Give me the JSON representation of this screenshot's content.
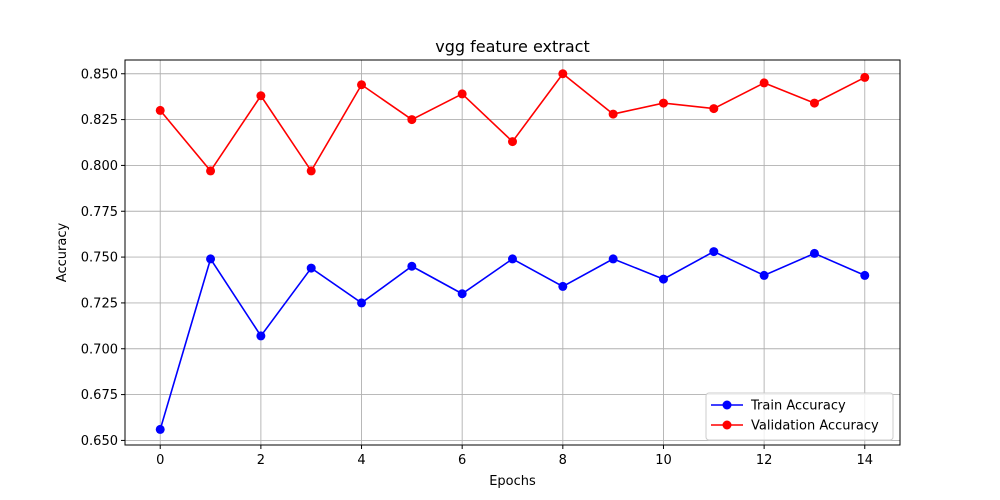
{
  "chart_data": {
    "type": "line",
    "title": "vgg feature extract",
    "xlabel": "Epochs",
    "ylabel": "Accuracy",
    "x": [
      0,
      1,
      2,
      3,
      4,
      5,
      6,
      7,
      8,
      9,
      10,
      11,
      12,
      13,
      14
    ],
    "xlim": [
      -0.7,
      14.7
    ],
    "ylim": [
      0.6475,
      0.8575
    ],
    "x_ticks": [
      0,
      2,
      4,
      6,
      8,
      10,
      12,
      14
    ],
    "y_ticks": [
      0.65,
      0.675,
      0.7,
      0.725,
      0.75,
      0.775,
      0.8,
      0.825,
      0.85
    ],
    "x_tick_labels": [
      "0",
      "2",
      "4",
      "6",
      "8",
      "10",
      "12",
      "14"
    ],
    "y_tick_labels": [
      "0.650",
      "0.675",
      "0.700",
      "0.725",
      "0.750",
      "0.775",
      "0.800",
      "0.825",
      "0.850"
    ],
    "grid": true,
    "legend_position": "bottom-right",
    "series": [
      {
        "name": "Train Accuracy",
        "color": "#0000ff",
        "marker": "circle",
        "values": [
          0.656,
          0.749,
          0.707,
          0.744,
          0.725,
          0.745,
          0.73,
          0.749,
          0.734,
          0.749,
          0.738,
          0.753,
          0.74,
          0.752,
          0.74
        ]
      },
      {
        "name": "Validation Accuracy",
        "color": "#ff0000",
        "marker": "circle",
        "values": [
          0.83,
          0.797,
          0.838,
          0.797,
          0.844,
          0.825,
          0.839,
          0.813,
          0.85,
          0.828,
          0.834,
          0.831,
          0.845,
          0.834,
          0.848
        ]
      }
    ]
  }
}
